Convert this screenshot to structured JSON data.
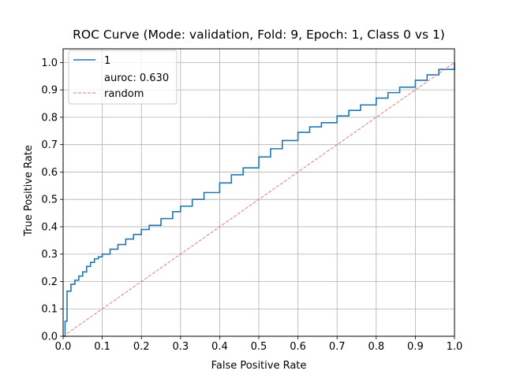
{
  "chart_data": {
    "type": "line",
    "title": "ROC Curve (Mode: validation, Fold: 9, Epoch: 1, Class 0 vs 1)",
    "xlabel": "False Positive Rate",
    "ylabel": "True Positive Rate",
    "xlim": [
      0,
      1
    ],
    "ylim": [
      0,
      1.05
    ],
    "xticks": [
      "0.0",
      "0.1",
      "0.2",
      "0.3",
      "0.4",
      "0.5",
      "0.6",
      "0.7",
      "0.8",
      "0.9",
      "1.0"
    ],
    "yticks": [
      "0.0",
      "0.1",
      "0.2",
      "0.3",
      "0.4",
      "0.5",
      "0.6",
      "0.7",
      "0.8",
      "0.9",
      "1.0"
    ],
    "grid": true,
    "legend_position": "top-left",
    "legend": [
      "1",
      "auroc: 0.630",
      "random"
    ],
    "series": [
      {
        "name": "1",
        "color": "#1f77b4",
        "style": "step",
        "x": [
          0.0,
          0.005,
          0.01,
          0.02,
          0.03,
          0.04,
          0.05,
          0.06,
          0.07,
          0.08,
          0.09,
          0.1,
          0.12,
          0.14,
          0.16,
          0.18,
          0.2,
          0.22,
          0.25,
          0.28,
          0.3,
          0.33,
          0.36,
          0.4,
          0.43,
          0.46,
          0.5,
          0.53,
          0.56,
          0.6,
          0.63,
          0.66,
          0.7,
          0.73,
          0.76,
          0.8,
          0.83,
          0.86,
          0.9,
          0.93,
          0.96,
          1.0
        ],
        "y": [
          0.0,
          0.055,
          0.165,
          0.19,
          0.205,
          0.22,
          0.235,
          0.255,
          0.27,
          0.283,
          0.29,
          0.3,
          0.318,
          0.335,
          0.355,
          0.372,
          0.39,
          0.405,
          0.43,
          0.455,
          0.475,
          0.5,
          0.525,
          0.56,
          0.59,
          0.615,
          0.655,
          0.685,
          0.715,
          0.745,
          0.765,
          0.78,
          0.805,
          0.825,
          0.845,
          0.87,
          0.89,
          0.91,
          0.935,
          0.955,
          0.975,
          1.0
        ]
      },
      {
        "name": "random",
        "color": "#e07b7b",
        "style": "dashed",
        "x": [
          0,
          1
        ],
        "y": [
          0,
          1
        ]
      }
    ]
  }
}
